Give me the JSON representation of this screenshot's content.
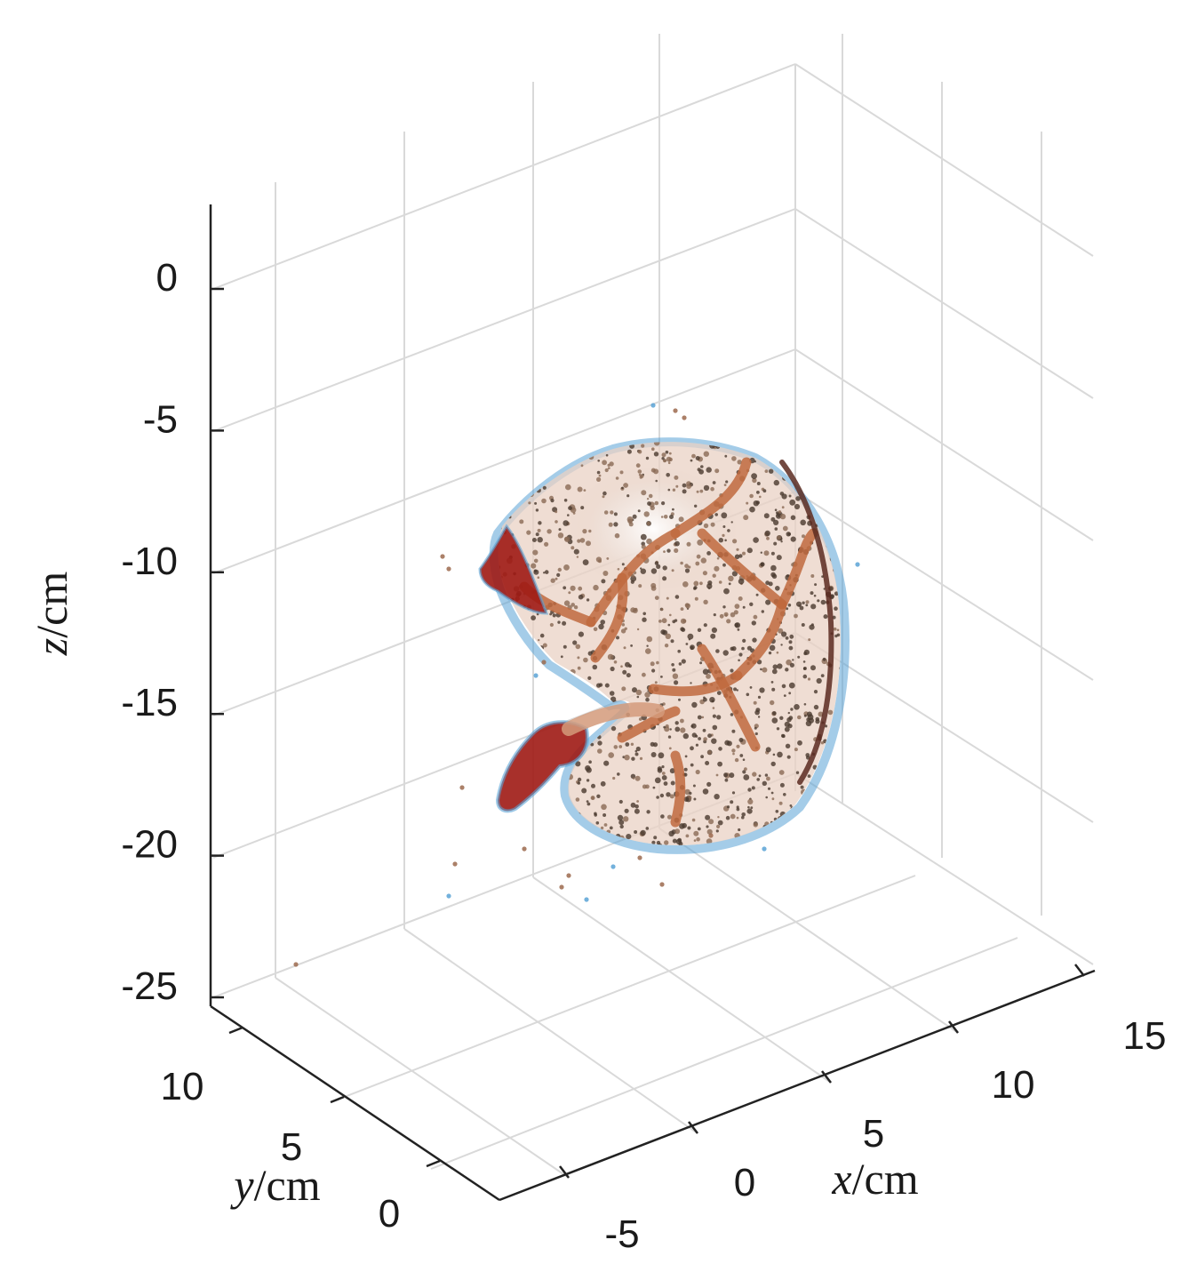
{
  "chart_data": {
    "type": "scatter",
    "subtype": "3d-point-cloud",
    "title": "",
    "xlabel": {
      "var": "x",
      "unit": "/cm"
    },
    "ylabel": {
      "var": "y",
      "unit": "/cm"
    },
    "zlabel": {
      "var": "z",
      "unit": "/cm"
    },
    "xticks": [
      "-5",
      "0",
      "5",
      "10",
      "15"
    ],
    "yticks": [
      "0",
      "5",
      "10"
    ],
    "zticks": [
      "0",
      "-5",
      "-10",
      "-15",
      "-20",
      "-25"
    ],
    "xlim": [
      -5,
      15
    ],
    "ylim": [
      0,
      10
    ],
    "zlim": [
      -25,
      0
    ],
    "grid": true,
    "legend": "none",
    "description_colors": {
      "surface_light": "#e9d2c4",
      "vessel": "#c06a3e",
      "dark_tissue": "#4a3a2e",
      "blood_red": "#9e1a14",
      "edge_blue": "#5aa3d6",
      "grid": "#d9d9d9",
      "axis": "#222222"
    }
  }
}
